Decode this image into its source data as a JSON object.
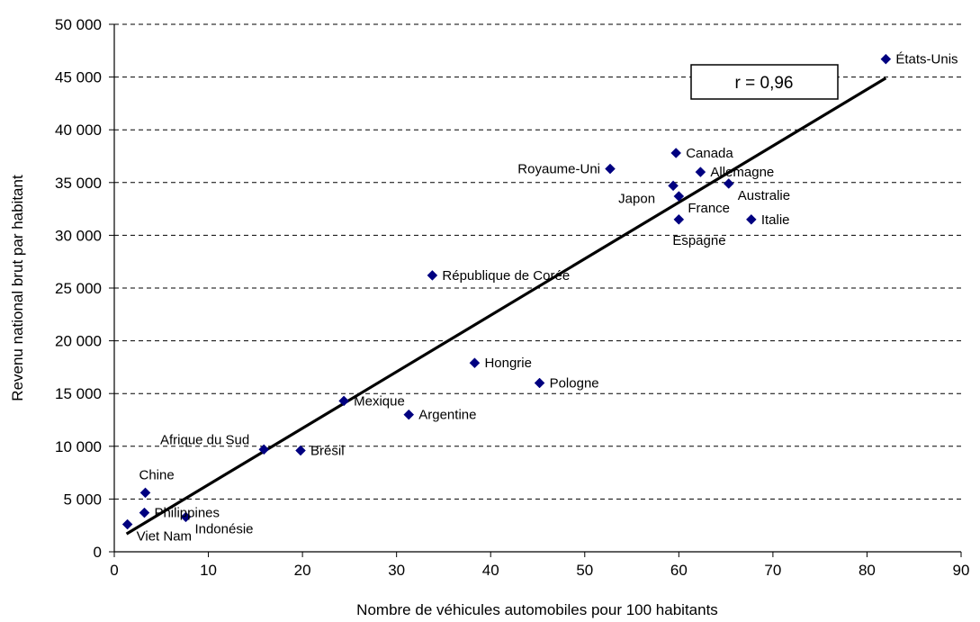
{
  "chart_data": {
    "type": "scatter",
    "xlabel": "Nombre de véhicules automobiles pour 100 habitants",
    "ylabel": "Revenu national brut par habitant",
    "xlim": [
      0,
      90
    ],
    "ylim": [
      0,
      50000
    ],
    "x_ticks": [
      0,
      10,
      20,
      30,
      40,
      50,
      60,
      70,
      80,
      90
    ],
    "y_ticks": [
      0,
      5000,
      10000,
      15000,
      20000,
      25000,
      30000,
      35000,
      40000,
      45000,
      50000
    ],
    "x_tick_labels": [
      "0",
      "10",
      "20",
      "30",
      "40",
      "50",
      "60",
      "70",
      "80",
      "90"
    ],
    "y_tick_labels": [
      "0",
      "5 000",
      "10 000",
      "15 000",
      "20 000",
      "25 000",
      "30 000",
      "35 000",
      "40 000",
      "45 000",
      "50 000"
    ],
    "grid": "horizontal dashed",
    "marker": "diamond",
    "marker_color": "#000080",
    "points": [
      {
        "label": "États-Unis",
        "x": 82,
        "y": 46700,
        "label_pos": "right"
      },
      {
        "label": "Canada",
        "x": 59.7,
        "y": 37800,
        "label_pos": "right"
      },
      {
        "label": "Royaume-Uni",
        "x": 52.7,
        "y": 36300,
        "label_pos": "left"
      },
      {
        "label": "Allemagne",
        "x": 62.3,
        "y": 36000,
        "label_pos": "right"
      },
      {
        "label": "Japon",
        "x": 59.4,
        "y": 34700,
        "label_pos": "left-below"
      },
      {
        "label": "Australie",
        "x": 65.3,
        "y": 34900,
        "label_pos": "right-below"
      },
      {
        "label": "France",
        "x": 60,
        "y": 33700,
        "label_pos": "right-below"
      },
      {
        "label": "Espagne",
        "x": 60,
        "y": 31500,
        "label_pos": "below"
      },
      {
        "label": "Italie",
        "x": 67.7,
        "y": 31500,
        "label_pos": "right"
      },
      {
        "label": "République de Corée",
        "x": 33.8,
        "y": 26200,
        "label_pos": "right"
      },
      {
        "label": "Hongrie",
        "x": 38.3,
        "y": 17900,
        "label_pos": "right"
      },
      {
        "label": "Pologne",
        "x": 45.2,
        "y": 16000,
        "label_pos": "right"
      },
      {
        "label": "Mexique",
        "x": 24.4,
        "y": 14300,
        "label_pos": "right"
      },
      {
        "label": "Argentine",
        "x": 31.3,
        "y": 13000,
        "label_pos": "right"
      },
      {
        "label": "Afrique du Sud",
        "x": 15.9,
        "y": 9700,
        "label_pos": "left-above"
      },
      {
        "label": "Brésil",
        "x": 19.8,
        "y": 9600,
        "label_pos": "right"
      },
      {
        "label": "Chine",
        "x": 3.3,
        "y": 5600,
        "label_pos": "above"
      },
      {
        "label": "Philippines",
        "x": 3.2,
        "y": 3700,
        "label_pos": "right"
      },
      {
        "label": "Indonésie",
        "x": 7.6,
        "y": 3300,
        "label_pos": "right-below"
      },
      {
        "label": "Viet Nam",
        "x": 1.4,
        "y": 2600,
        "label_pos": "right-below"
      }
    ],
    "trendline": {
      "x": [
        1.3,
        82
      ],
      "y": [
        1700,
        44900
      ]
    },
    "annotation": "r = 0,96"
  }
}
